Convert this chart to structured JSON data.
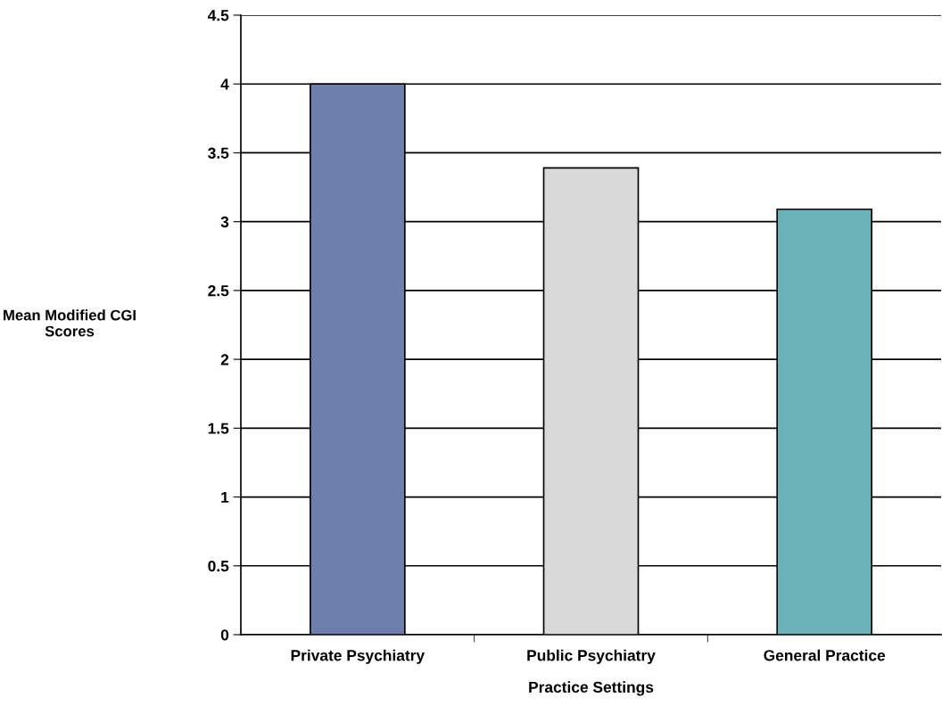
{
  "chart_data": {
    "type": "bar",
    "xlabel": "Practice Settings",
    "ylabel": "Mean Modified CGI\nScores",
    "categories": [
      "Private Psychiatry",
      "Public Psychiatry",
      "General Practice"
    ],
    "values": [
      4.0,
      3.39,
      3.09
    ],
    "colors": [
      "#6f7fad",
      "#d9d9d9",
      "#6bb3b8"
    ],
    "ylim": [
      0,
      4.5
    ],
    "yticks": [
      0,
      0.5,
      1,
      1.5,
      2,
      2.5,
      3,
      3.5,
      4,
      4.5
    ],
    "grid": "y"
  }
}
